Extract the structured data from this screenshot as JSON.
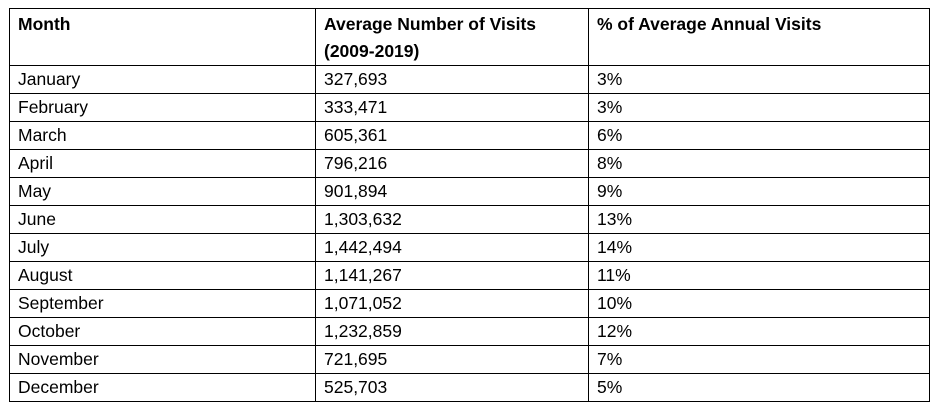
{
  "table": {
    "headers": {
      "month": "Month",
      "visits_line1": "Average Number of Visits",
      "visits_line2": "(2009-2019)",
      "percent": "% of Average Annual Visits"
    },
    "rows": [
      {
        "month": "January",
        "visits": "327,693",
        "percent": "3%"
      },
      {
        "month": "February",
        "visits": "333,471",
        "percent": "3%"
      },
      {
        "month": "March",
        "visits": "605,361",
        "percent": "6%"
      },
      {
        "month": "April",
        "visits": "796,216",
        "percent": "8%"
      },
      {
        "month": "May",
        "visits": "901,894",
        "percent": "9%"
      },
      {
        "month": "June",
        "visits": "1,303,632",
        "percent": "13%"
      },
      {
        "month": "July",
        "visits": "1,442,494",
        "percent": "14%"
      },
      {
        "month": "August",
        "visits": "1,141,267",
        "percent": "11%"
      },
      {
        "month": "September",
        "visits": "1,071,052",
        "percent": "10%"
      },
      {
        "month": "October",
        "visits": "1,232,859",
        "percent": "12%"
      },
      {
        "month": "November",
        "visits": "721,695",
        "percent": "7%"
      },
      {
        "month": "December",
        "visits": "525,703",
        "percent": "5%"
      }
    ]
  }
}
